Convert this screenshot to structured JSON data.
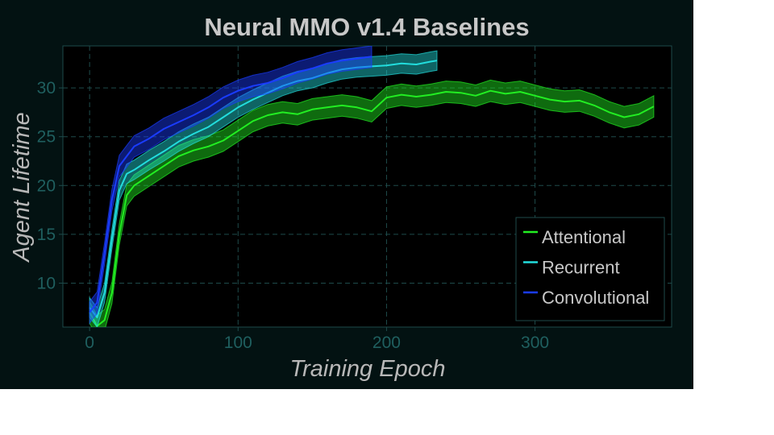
{
  "chart_data": {
    "type": "line",
    "title": "Neural MMO v1.4 Baselines",
    "xlabel": "Training Epoch",
    "ylabel": "Agent Lifetime",
    "xlim": [
      -18,
      392
    ],
    "ylim": [
      5.5,
      34.3
    ],
    "x_ticks": [
      0,
      100,
      200,
      300
    ],
    "y_ticks": [
      10,
      15,
      20,
      25,
      30
    ],
    "grid": true,
    "legend_position": "lower-right",
    "series": [
      {
        "name": "Attentional",
        "color": "#22ee22",
        "band": 1.1,
        "points": [
          [
            0,
            7.0
          ],
          [
            5,
            5.6
          ],
          [
            10,
            6.2
          ],
          [
            15,
            9.0
          ],
          [
            20,
            15.0
          ],
          [
            25,
            19.0
          ],
          [
            30,
            20.0
          ],
          [
            40,
            21.0
          ],
          [
            50,
            22.0
          ],
          [
            60,
            23.0
          ],
          [
            70,
            23.6
          ],
          [
            80,
            24.0
          ],
          [
            90,
            24.6
          ],
          [
            100,
            25.6
          ],
          [
            110,
            26.6
          ],
          [
            120,
            27.2
          ],
          [
            130,
            27.5
          ],
          [
            140,
            27.3
          ],
          [
            150,
            27.8
          ],
          [
            160,
            28.0
          ],
          [
            170,
            28.2
          ],
          [
            180,
            28.0
          ],
          [
            190,
            27.6
          ],
          [
            200,
            29.0
          ],
          [
            210,
            29.3
          ],
          [
            220,
            29.1
          ],
          [
            230,
            29.3
          ],
          [
            240,
            29.6
          ],
          [
            250,
            29.5
          ],
          [
            260,
            29.2
          ],
          [
            270,
            29.7
          ],
          [
            280,
            29.4
          ],
          [
            290,
            29.6
          ],
          [
            300,
            29.2
          ],
          [
            310,
            28.8
          ],
          [
            320,
            28.6
          ],
          [
            330,
            28.7
          ],
          [
            340,
            28.2
          ],
          [
            350,
            27.5
          ],
          [
            360,
            27.0
          ],
          [
            370,
            27.3
          ],
          [
            380,
            28.1
          ]
        ]
      },
      {
        "name": "Recurrent",
        "color": "#22dddd",
        "band": 1.0,
        "points": [
          [
            0,
            7.5
          ],
          [
            5,
            6.5
          ],
          [
            10,
            9.0
          ],
          [
            15,
            14.5
          ],
          [
            20,
            19.5
          ],
          [
            25,
            21.2
          ],
          [
            30,
            21.6
          ],
          [
            40,
            22.6
          ],
          [
            50,
            23.5
          ],
          [
            60,
            24.5
          ],
          [
            70,
            25.3
          ],
          [
            80,
            26.0
          ],
          [
            90,
            27.0
          ],
          [
            100,
            28.0
          ],
          [
            110,
            28.8
          ],
          [
            120,
            29.5
          ],
          [
            130,
            30.2
          ],
          [
            140,
            30.7
          ],
          [
            150,
            31.0
          ],
          [
            160,
            31.5
          ],
          [
            170,
            31.9
          ],
          [
            180,
            32.1
          ],
          [
            190,
            32.2
          ],
          [
            200,
            32.3
          ],
          [
            210,
            32.5
          ],
          [
            220,
            32.4
          ],
          [
            230,
            32.7
          ],
          [
            234,
            32.8
          ]
        ]
      },
      {
        "name": "Convolutional",
        "color": "#1a3cff",
        "band": 1.1,
        "points": [
          [
            0,
            7.0
          ],
          [
            5,
            8.0
          ],
          [
            10,
            13.0
          ],
          [
            15,
            18.5
          ],
          [
            20,
            22.0
          ],
          [
            25,
            23.0
          ],
          [
            30,
            24.0
          ],
          [
            40,
            24.8
          ],
          [
            50,
            25.8
          ],
          [
            60,
            26.5
          ],
          [
            70,
            27.2
          ],
          [
            80,
            28.0
          ],
          [
            90,
            29.0
          ],
          [
            100,
            29.7
          ],
          [
            110,
            30.2
          ],
          [
            120,
            30.5
          ],
          [
            130,
            31.0
          ],
          [
            140,
            31.6
          ],
          [
            150,
            32.0
          ],
          [
            160,
            32.5
          ],
          [
            170,
            32.8
          ],
          [
            180,
            33.0
          ],
          [
            190,
            33.2
          ]
        ]
      }
    ]
  }
}
